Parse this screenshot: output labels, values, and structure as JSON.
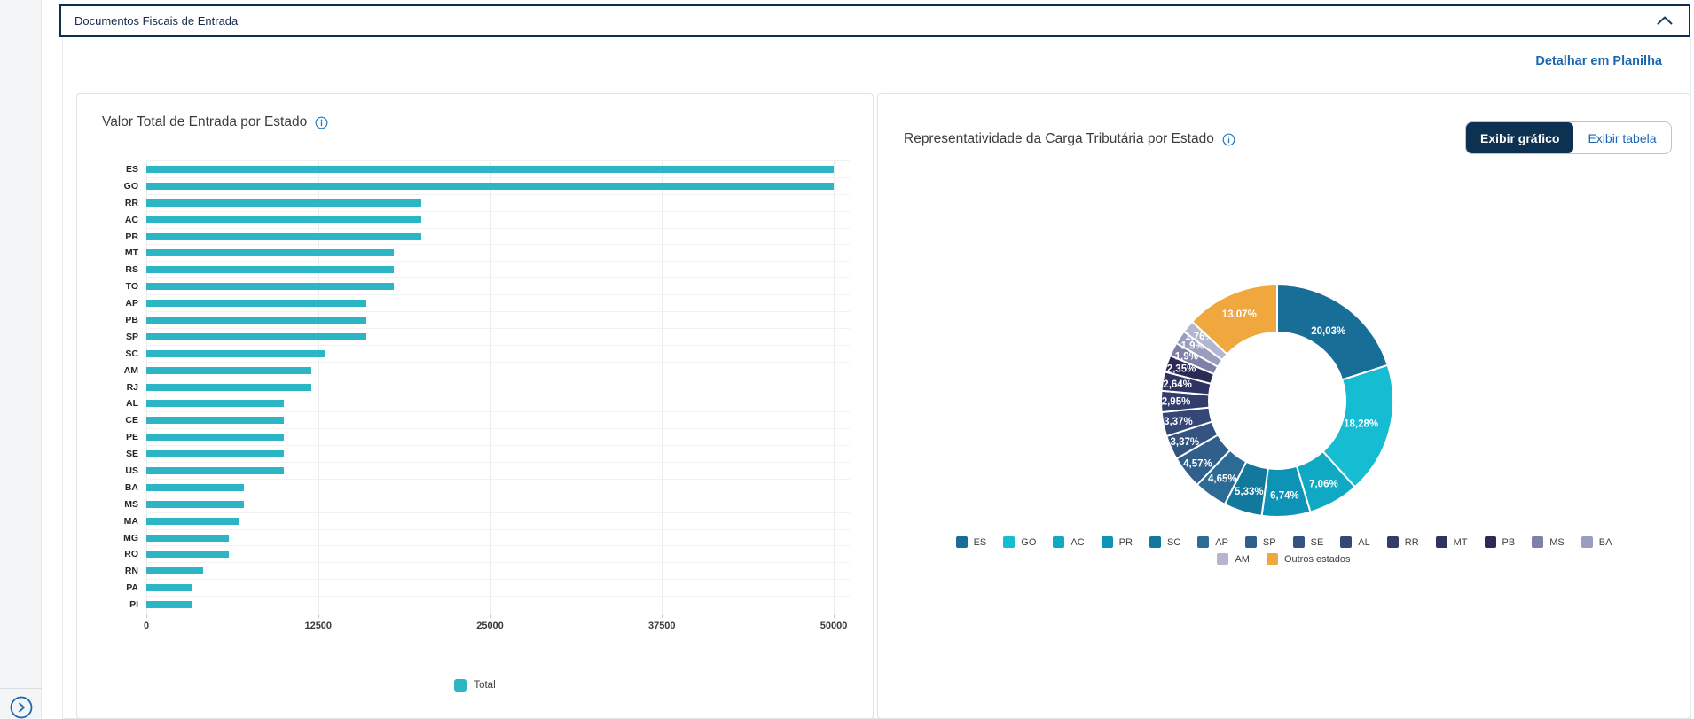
{
  "sidebar": {
    "expand_button_icon": "chevron-right-circle-icon"
  },
  "header": {
    "title": "Documentos Fiscais de Entrada",
    "collapse_icon": "chevron-up-icon"
  },
  "toolbar": {
    "detail_link_label": "Detalhar em Planilha"
  },
  "right_panel": {
    "toggle_grafico_label": "Exibir gráfico",
    "toggle_tabela_label": "Exibir tabela"
  },
  "colors": {
    "bar_teal": "#2cb5c4",
    "active_button_bg": "#0d3150",
    "link_blue": "#1c67b0",
    "header_border": "#0e2e4e"
  },
  "chart_data": [
    {
      "type": "bar",
      "orientation": "horizontal",
      "title": "Valor Total de Entrada por Estado",
      "series_name": "Total",
      "categories": [
        "ES",
        "GO",
        "RR",
        "AC",
        "PR",
        "MT",
        "RS",
        "TO",
        "AP",
        "PB",
        "SP",
        "SC",
        "AM",
        "RJ",
        "AL",
        "CE",
        "PE",
        "SE",
        "US",
        "BA",
        "MS",
        "MA",
        "MG",
        "RO",
        "RN",
        "PA",
        "PI"
      ],
      "values": [
        50000,
        50000,
        20000,
        20000,
        20000,
        18000,
        18000,
        18000,
        16000,
        16000,
        16000,
        13000,
        12000,
        12000,
        10000,
        10000,
        10000,
        10000,
        10000,
        7100,
        7100,
        6700,
        6000,
        6000,
        4100,
        3300,
        3300
      ],
      "x_axis": {
        "ticks": [
          0,
          12500,
          25000,
          37500,
          50000
        ],
        "max": 51160
      },
      "bar_color": "#2cb5c4",
      "grid": true,
      "legend_position": "bottom"
    },
    {
      "type": "pie",
      "subtype": "donut",
      "title": "Representatividade da Carga Tributária por Estado",
      "unit": "%",
      "slices": [
        {
          "label": "ES",
          "value": 20.03,
          "value_label": "20,03%",
          "color": "#186e96"
        },
        {
          "label": "GO",
          "value": 18.28,
          "value_label": "18,28%",
          "color": "#15bcd2"
        },
        {
          "label": "AC",
          "value": 7.06,
          "value_label": "7,06%",
          "color": "#0fa9c4"
        },
        {
          "label": "PR",
          "value": 6.74,
          "value_label": "6,74%",
          "color": "#0d93b5"
        },
        {
          "label": "SC",
          "value": 5.33,
          "value_label": "5,33%",
          "color": "#13799c"
        },
        {
          "label": "AP",
          "value": 4.65,
          "value_label": "4,65%",
          "color": "#2b6b95"
        },
        {
          "label": "SP",
          "value": 4.57,
          "value_label": "4,57%",
          "color": "#2f5f8a"
        },
        {
          "label": "SE",
          "value": 3.37,
          "value_label": "3,37%",
          "color": "#335380"
        },
        {
          "label": "AL",
          "value": 3.37,
          "value_label": "3,37%",
          "color": "#344776"
        },
        {
          "label": "RR",
          "value": 2.95,
          "value_label": "2,95%",
          "color": "#333d6c"
        },
        {
          "label": "MT",
          "value": 2.64,
          "value_label": "2,64%",
          "color": "#2f3363"
        },
        {
          "label": "PB",
          "value": 2.35,
          "value_label": "2,35%",
          "color": "#2b2955"
        },
        {
          "label": "MS",
          "value": 1.9,
          "value_label": "1,9%",
          "color": "#7d80a9"
        },
        {
          "label": "BA",
          "value": 1.9,
          "value_label": "1,9%",
          "color": "#9a9dbf"
        },
        {
          "label": "AM",
          "value": 1.76,
          "value_label": "1,76%",
          "color": "#b4b6cf"
        },
        {
          "label": "Outros estados",
          "value": 13.07,
          "value_label": "13,07%",
          "color": "#efa73e"
        }
      ],
      "legend_rows": [
        14,
        2
      ],
      "legend_position": "bottom"
    }
  ]
}
